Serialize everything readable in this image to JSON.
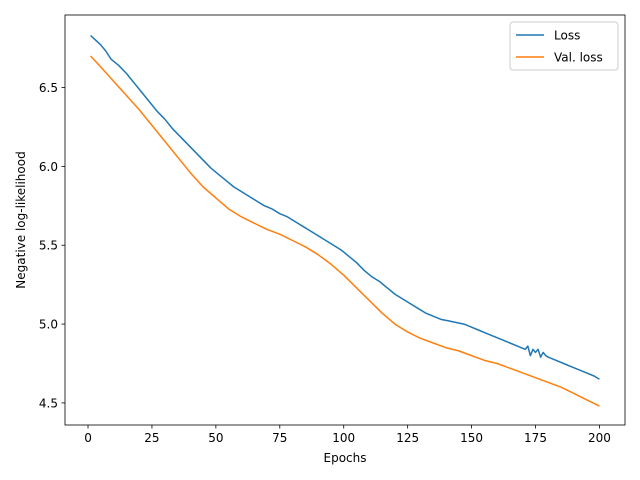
{
  "chart_data": {
    "type": "line",
    "xlabel": "Epochs",
    "ylabel": "Negative log-likelihood",
    "xlim": [
      -9,
      210
    ],
    "ylim": [
      4.36,
      6.96
    ],
    "xticks": [
      0,
      25,
      50,
      75,
      100,
      125,
      150,
      175,
      200
    ],
    "yticks": [
      4.5,
      5.0,
      5.5,
      6.0,
      6.5
    ],
    "ytick_labels": [
      "4.5",
      "5.0",
      "5.5",
      "6.0",
      "6.5"
    ],
    "grid": false,
    "legend_position": "top-right",
    "series": [
      {
        "name": "Loss",
        "color": "#1f77b4",
        "x": [
          1,
          3,
          5,
          7,
          9,
          12,
          15,
          18,
          21,
          24,
          27,
          30,
          33,
          36,
          39,
          42,
          45,
          48,
          51,
          54,
          57,
          60,
          63,
          66,
          69,
          72,
          75,
          78,
          81,
          84,
          87,
          90,
          93,
          96,
          99,
          102,
          105,
          108,
          111,
          114,
          117,
          120,
          123,
          126,
          129,
          132,
          135,
          138,
          141,
          144,
          147,
          150,
          153,
          156,
          159,
          162,
          165,
          168,
          171,
          172,
          173,
          174,
          175,
          176,
          177,
          178,
          179,
          180,
          183,
          186,
          189,
          192,
          195,
          198,
          200
        ],
        "y": [
          6.83,
          6.8,
          6.77,
          6.73,
          6.68,
          6.64,
          6.59,
          6.53,
          6.47,
          6.41,
          6.35,
          6.3,
          6.24,
          6.19,
          6.14,
          6.09,
          6.04,
          5.99,
          5.95,
          5.91,
          5.87,
          5.84,
          5.81,
          5.78,
          5.75,
          5.73,
          5.7,
          5.68,
          5.65,
          5.62,
          5.59,
          5.56,
          5.53,
          5.5,
          5.47,
          5.43,
          5.39,
          5.34,
          5.3,
          5.27,
          5.23,
          5.19,
          5.16,
          5.13,
          5.1,
          5.07,
          5.05,
          5.03,
          5.02,
          5.01,
          5.0,
          4.98,
          4.96,
          4.94,
          4.92,
          4.9,
          4.88,
          4.86,
          4.84,
          4.86,
          4.8,
          4.84,
          4.82,
          4.84,
          4.79,
          4.82,
          4.8,
          4.79,
          4.77,
          4.75,
          4.73,
          4.71,
          4.69,
          4.67,
          4.65
        ]
      },
      {
        "name": "Val. loss",
        "color": "#ff7f0e",
        "x": [
          1,
          5,
          10,
          15,
          20,
          25,
          30,
          35,
          40,
          45,
          50,
          55,
          60,
          65,
          70,
          75,
          80,
          85,
          90,
          95,
          100,
          105,
          110,
          115,
          120,
          125,
          130,
          135,
          140,
          145,
          150,
          155,
          160,
          165,
          170,
          175,
          180,
          185,
          190,
          195,
          200
        ],
        "y": [
          6.7,
          6.63,
          6.54,
          6.45,
          6.36,
          6.26,
          6.16,
          6.06,
          5.96,
          5.87,
          5.8,
          5.73,
          5.68,
          5.64,
          5.6,
          5.57,
          5.53,
          5.49,
          5.44,
          5.38,
          5.31,
          5.23,
          5.15,
          5.07,
          5.0,
          4.95,
          4.91,
          4.88,
          4.85,
          4.83,
          4.8,
          4.77,
          4.75,
          4.72,
          4.69,
          4.66,
          4.63,
          4.6,
          4.56,
          4.52,
          4.48
        ]
      }
    ]
  }
}
